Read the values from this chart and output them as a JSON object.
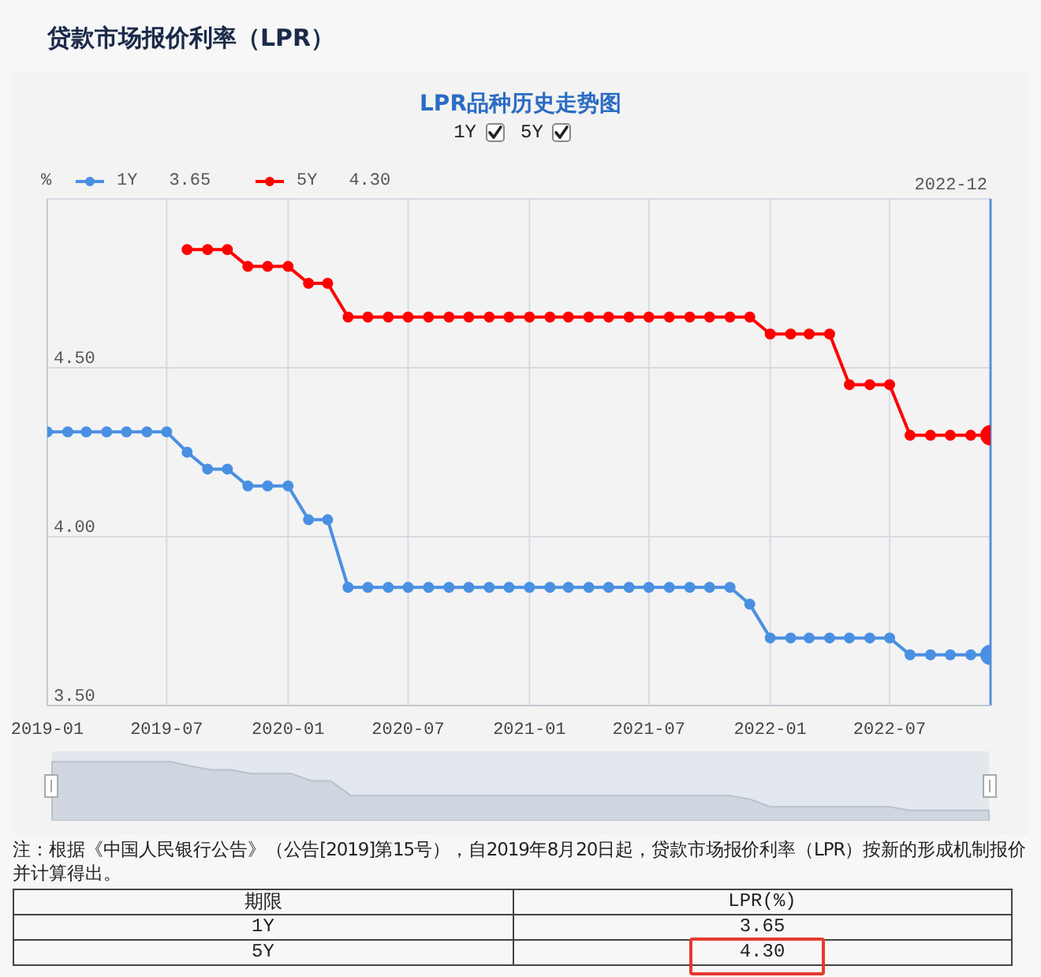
{
  "chart_data": {
    "type": "line",
    "title": "贷款市场报价利率（LPR）",
    "subtitle": "LPR品种历史走势图",
    "ylabel": "%",
    "annotations": [
      "注：根据《中国人民银行公告》（公告[2019]第15号），自2019年8月20日起，贷款市场报价利率（LPR）按新的形成机制报价并计算得出。",
      "期限",
      "LPR(%)",
      "3.65",
      "4.30"
    ],
    "x": [
      "2019-01",
      "2019-02",
      "2019-03",
      "2019-04",
      "2019-05",
      "2019-06",
      "2019-07",
      "2019-08",
      "2019-09",
      "2019-10",
      "2019-11",
      "2019-12",
      "2020-01",
      "2020-02",
      "2020-03",
      "2020-04",
      "2020-05",
      "2020-06",
      "2020-07",
      "2020-08",
      "2020-09",
      "2020-10",
      "2020-11",
      "2020-12",
      "2021-01",
      "2021-02",
      "2021-03",
      "2021-04",
      "2021-05",
      "2021-06",
      "2021-07",
      "2021-08",
      "2021-09",
      "2021-10",
      "2021-11",
      "2021-12",
      "2022-01",
      "2022-02",
      "2022-03",
      "2022-04",
      "2022-05",
      "2022-06",
      "2022-07",
      "2022-08",
      "2022-09",
      "2022-10",
      "2022-11",
      "2022-12"
    ],
    "series": [
      {
        "name": "1Y",
        "color": "#4a90e2",
        "values": [
          4.31,
          4.31,
          4.31,
          4.31,
          4.31,
          4.31,
          4.31,
          4.25,
          4.2,
          4.2,
          4.15,
          4.15,
          4.15,
          4.05,
          4.05,
          3.85,
          3.85,
          3.85,
          3.85,
          3.85,
          3.85,
          3.85,
          3.85,
          3.85,
          3.85,
          3.85,
          3.85,
          3.85,
          3.85,
          3.85,
          3.85,
          3.85,
          3.85,
          3.85,
          3.85,
          3.8,
          3.7,
          3.7,
          3.7,
          3.7,
          3.7,
          3.7,
          3.7,
          3.65,
          3.65,
          3.65,
          3.65,
          3.65
        ]
      },
      {
        "name": "5Y",
        "color": "#ff0000",
        "values": [
          null,
          null,
          null,
          null,
          null,
          null,
          null,
          4.85,
          4.85,
          4.85,
          4.8,
          4.8,
          4.8,
          4.75,
          4.75,
          4.65,
          4.65,
          4.65,
          4.65,
          4.65,
          4.65,
          4.65,
          4.65,
          4.65,
          4.65,
          4.65,
          4.65,
          4.65,
          4.65,
          4.65,
          4.65,
          4.65,
          4.65,
          4.65,
          4.65,
          4.65,
          4.6,
          4.6,
          4.6,
          4.6,
          4.45,
          4.45,
          4.45,
          4.3,
          4.3,
          4.3,
          4.3,
          4.3
        ]
      }
    ],
    "xlim": [
      "2019-01",
      "2022-12"
    ],
    "xticks": [
      "2019-01",
      "2019-07",
      "2020-01",
      "2020-07",
      "2021-01",
      "2021-07",
      "2022-01",
      "2022-07"
    ],
    "ylim": [
      3.5,
      5.0
    ],
    "yticks": [
      {
        "value": 3.5,
        "label": "3.50"
      },
      {
        "value": 4.0,
        "label": "4.00"
      },
      {
        "value": 4.5,
        "label": "4.50"
      },
      {
        "value": 5.0,
        "label": null
      }
    ],
    "grid": true,
    "legend": "top left",
    "marker": "circle",
    "line_style": "solid",
    "ref_lines": [
      {
        "axis": "x",
        "value": "2022-12",
        "label": "2022-12",
        "color": "#5a8fd8"
      }
    ]
  }
}
